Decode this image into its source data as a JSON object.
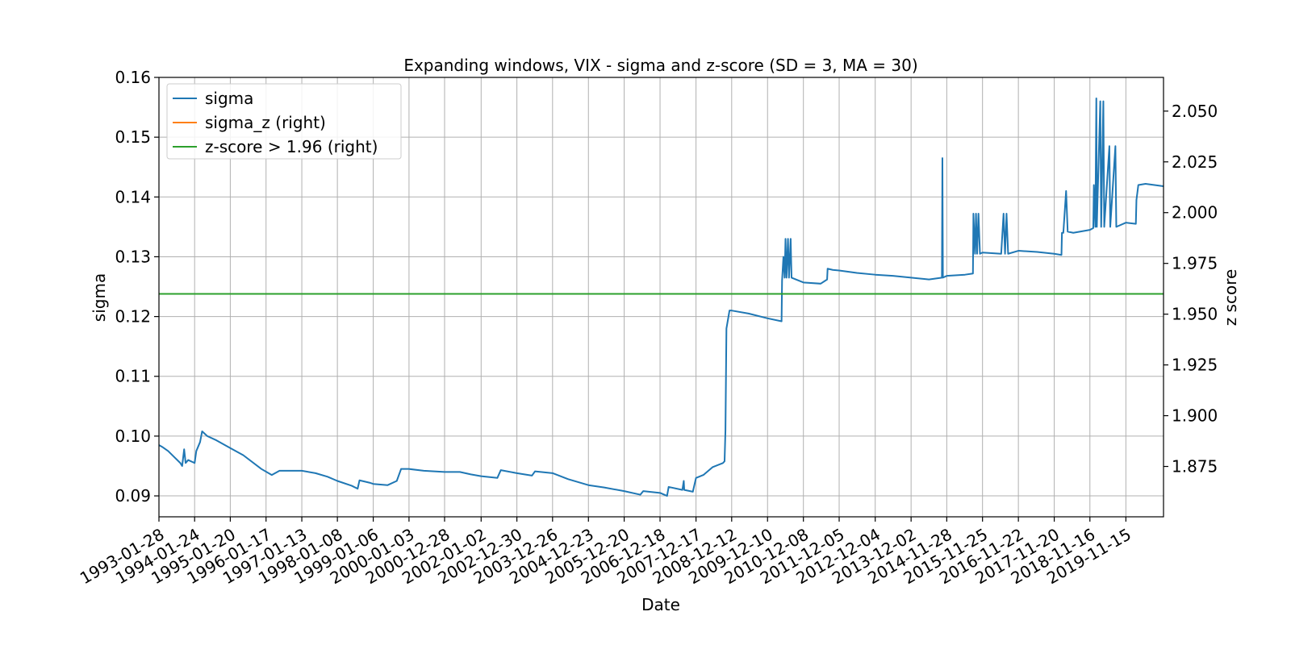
{
  "chart_data": {
    "type": "line",
    "title": "Expanding windows, VIX - sigma and z-score (SD = 3, MA = 30)",
    "xlabel": "Date",
    "ylabel": "sigma",
    "y2label": "z score",
    "ylim": [
      0.0865,
      0.16
    ],
    "y2lim": [
      1.8502,
      2.0666
    ],
    "yticks": [
      "0.09",
      "0.10",
      "0.11",
      "0.12",
      "0.13",
      "0.14",
      "0.15",
      "0.16"
    ],
    "y2ticks": [
      "1.875",
      "1.900",
      "1.925",
      "1.950",
      "1.975",
      "2.000",
      "2.025",
      "2.050"
    ],
    "xlim": [
      "1993-01-28",
      "2020-11-30"
    ],
    "xticks": [
      "1993-01-28",
      "1994-01-24",
      "1995-01-20",
      "1996-01-17",
      "1997-01-13",
      "1998-01-08",
      "1999-01-06",
      "2000-01-03",
      "2000-12-28",
      "2002-01-02",
      "2002-12-30",
      "2003-12-26",
      "2004-12-23",
      "2005-12-20",
      "2006-12-18",
      "2007-12-17",
      "2008-12-12",
      "2009-12-10",
      "2010-12-08",
      "2011-12-05",
      "2012-12-04",
      "2013-12-02",
      "2014-11-28",
      "2015-11-25",
      "2016-11-22",
      "2017-11-20",
      "2018-11-16",
      "2019-11-15"
    ],
    "grid": true,
    "legend_position": "top-left",
    "series": [
      {
        "name": "sigma",
        "axis": "left",
        "color": "#1f77b4",
        "points": [
          [
            "1993-01-28",
            0.0985
          ],
          [
            "1993-03-01",
            0.0982
          ],
          [
            "1993-05-01",
            0.0975
          ],
          [
            "1993-07-01",
            0.0965
          ],
          [
            "1993-09-01",
            0.0955
          ],
          [
            "1993-09-20",
            0.095
          ],
          [
            "1993-10-10",
            0.0978
          ],
          [
            "1993-10-25",
            0.0955
          ],
          [
            "1993-11-20",
            0.096
          ],
          [
            "1994-01-24",
            0.0955
          ],
          [
            "1994-02-10",
            0.0975
          ],
          [
            "1994-03-20",
            0.099
          ],
          [
            "1994-04-10",
            0.1008
          ],
          [
            "1994-06-01",
            0.1
          ],
          [
            "1994-09-01",
            0.0993
          ],
          [
            "1995-01-20",
            0.098
          ],
          [
            "1995-06-01",
            0.0968
          ],
          [
            "1995-12-01",
            0.0945
          ],
          [
            "1996-03-15",
            0.0935
          ],
          [
            "1996-06-01",
            0.0942
          ],
          [
            "1997-01-13",
            0.0942
          ],
          [
            "1997-06-01",
            0.0938
          ],
          [
            "1997-10-01",
            0.0932
          ],
          [
            "1998-01-08",
            0.0925
          ],
          [
            "1998-06-01",
            0.0917
          ],
          [
            "1998-08-01",
            0.0912
          ],
          [
            "1998-08-20",
            0.0926
          ],
          [
            "1998-12-01",
            0.0922
          ],
          [
            "1999-01-06",
            0.092
          ],
          [
            "1999-06-01",
            0.0918
          ],
          [
            "1999-09-01",
            0.0925
          ],
          [
            "1999-10-15",
            0.0945
          ],
          [
            "2000-01-03",
            0.0945
          ],
          [
            "2000-06-01",
            0.0942
          ],
          [
            "2000-12-28",
            0.094
          ],
          [
            "2001-06-01",
            0.094
          ],
          [
            "2001-09-20",
            0.0936
          ],
          [
            "2002-01-02",
            0.0933
          ],
          [
            "2002-06-15",
            0.093
          ],
          [
            "2002-07-20",
            0.0943
          ],
          [
            "2002-12-30",
            0.0938
          ],
          [
            "2003-06-01",
            0.0934
          ],
          [
            "2003-07-01",
            0.0941
          ],
          [
            "2003-12-26",
            0.0938
          ],
          [
            "2004-06-01",
            0.0928
          ],
          [
            "2004-12-23",
            0.0918
          ],
          [
            "2005-06-01",
            0.0914
          ],
          [
            "2005-12-20",
            0.0908
          ],
          [
            "2006-06-01",
            0.0902
          ],
          [
            "2006-07-01",
            0.0908
          ],
          [
            "2006-12-18",
            0.0905
          ],
          [
            "2007-02-27",
            0.09
          ],
          [
            "2007-03-15",
            0.0915
          ],
          [
            "2007-08-01",
            0.091
          ],
          [
            "2007-08-15",
            0.0925
          ],
          [
            "2007-08-20",
            0.091
          ],
          [
            "2007-11-15",
            0.0907
          ],
          [
            "2007-12-17",
            0.093
          ],
          [
            "2008-03-01",
            0.0935
          ],
          [
            "2008-06-01",
            0.0948
          ],
          [
            "2008-09-15",
            0.0955
          ],
          [
            "2008-10-01",
            0.0958
          ],
          [
            "2008-10-10",
            0.101
          ],
          [
            "2008-10-20",
            0.118
          ],
          [
            "2008-11-20",
            0.121
          ],
          [
            "2008-12-12",
            0.121
          ],
          [
            "2009-06-01",
            0.1205
          ],
          [
            "2009-12-10",
            0.1197
          ],
          [
            "2010-05-01",
            0.1192
          ],
          [
            "2010-05-06",
            0.126
          ],
          [
            "2010-05-20",
            0.13
          ],
          [
            "2010-06-01",
            0.1265
          ],
          [
            "2010-06-10",
            0.133
          ],
          [
            "2010-06-20",
            0.1265
          ],
          [
            "2010-07-05",
            0.133
          ],
          [
            "2010-07-15",
            0.1265
          ],
          [
            "2010-08-01",
            0.133
          ],
          [
            "2010-08-10",
            0.1265
          ],
          [
            "2010-12-08",
            0.1257
          ],
          [
            "2011-06-01",
            0.1255
          ],
          [
            "2011-08-05",
            0.1262
          ],
          [
            "2011-08-10",
            0.128
          ],
          [
            "2011-10-01",
            0.1278
          ],
          [
            "2011-12-05",
            0.1277
          ],
          [
            "2012-06-01",
            0.1273
          ],
          [
            "2012-12-04",
            0.127
          ],
          [
            "2013-06-01",
            0.1268
          ],
          [
            "2013-12-02",
            0.1265
          ],
          [
            "2014-06-01",
            0.1262
          ],
          [
            "2014-10-10",
            0.1265
          ],
          [
            "2014-10-15",
            0.1465
          ],
          [
            "2014-10-20",
            0.1265
          ],
          [
            "2014-11-28",
            0.1268
          ],
          [
            "2015-06-01",
            0.127
          ],
          [
            "2015-08-20",
            0.1272
          ],
          [
            "2015-08-25",
            0.1372
          ],
          [
            "2015-09-10",
            0.1305
          ],
          [
            "2015-09-20",
            0.1372
          ],
          [
            "2015-10-01",
            0.1305
          ],
          [
            "2015-10-15",
            0.1372
          ],
          [
            "2015-10-30",
            0.1305
          ],
          [
            "2015-11-25",
            0.1307
          ],
          [
            "2016-06-01",
            0.1305
          ],
          [
            "2016-06-25",
            0.1372
          ],
          [
            "2016-07-10",
            0.1305
          ],
          [
            "2016-07-25",
            0.1372
          ],
          [
            "2016-08-10",
            0.1305
          ],
          [
            "2016-11-22",
            0.131
          ],
          [
            "2017-06-01",
            0.1308
          ],
          [
            "2017-11-20",
            0.1305
          ],
          [
            "2018-02-01",
            0.1303
          ],
          [
            "2018-02-06",
            0.134
          ],
          [
            "2018-02-20",
            0.134
          ],
          [
            "2018-03-20",
            0.141
          ],
          [
            "2018-04-05",
            0.1342
          ],
          [
            "2018-06-01",
            0.134
          ],
          [
            "2018-11-16",
            0.1345
          ],
          [
            "2018-12-20",
            0.1348
          ],
          [
            "2018-12-26",
            0.142
          ],
          [
            "2019-01-10",
            0.135
          ],
          [
            "2019-01-20",
            0.1565
          ],
          [
            "2019-01-25",
            0.135
          ],
          [
            "2019-03-01",
            0.156
          ],
          [
            "2019-03-10",
            0.135
          ],
          [
            "2019-04-01",
            0.156
          ],
          [
            "2019-04-10",
            0.135
          ],
          [
            "2019-06-01",
            0.1485
          ],
          [
            "2019-06-10",
            0.135
          ],
          [
            "2019-08-01",
            0.1485
          ],
          [
            "2019-08-10",
            0.135
          ],
          [
            "2019-11-15",
            0.1357
          ],
          [
            "2020-02-24",
            0.1355
          ],
          [
            "2020-03-01",
            0.1395
          ],
          [
            "2020-03-20",
            0.142
          ],
          [
            "2020-06-01",
            0.1422
          ],
          [
            "2020-11-30",
            0.1418
          ]
        ]
      },
      {
        "name": "sigma_z (right)",
        "axis": "right",
        "color": "#ff7f0e",
        "points": []
      },
      {
        "name": "z-score > 1.96 (right)",
        "axis": "right",
        "color": "#2ca02c",
        "points": [
          [
            "1993-01-28",
            1.96
          ],
          [
            "2020-11-30",
            1.96
          ]
        ]
      }
    ]
  }
}
